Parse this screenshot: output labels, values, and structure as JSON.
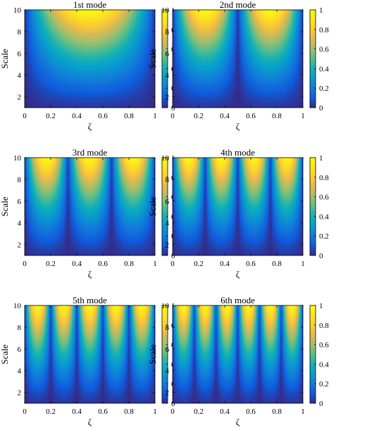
{
  "chart_data": [
    {
      "type": "heatmap",
      "title": "1st mode",
      "mode": 1,
      "xlabel": "ζ",
      "ylabel": "Scale",
      "xlim": [
        0,
        1
      ],
      "ylim": [
        1,
        10
      ],
      "xticks": [
        "0",
        "0.2",
        "0.4",
        "0.6",
        "0.8",
        "1"
      ],
      "yticks": [
        "2",
        "4",
        "6",
        "8",
        "10"
      ],
      "colorbar": {
        "range": [
          0,
          1
        ],
        "ticks": [
          "0",
          "0.2",
          "0.4",
          "0.6",
          "0.8",
          "1"
        ],
        "colormap": "parula"
      }
    },
    {
      "type": "heatmap",
      "title": "2nd mode",
      "mode": 2,
      "xlabel": "ζ",
      "ylabel": "Scale",
      "xlim": [
        0,
        1
      ],
      "ylim": [
        1,
        10
      ],
      "xticks": [
        "0",
        "0.2",
        "0.4",
        "0.6",
        "0.8",
        "1"
      ],
      "yticks": [
        "2",
        "4",
        "6",
        "8",
        "10"
      ],
      "colorbar": {
        "range": [
          0,
          1
        ],
        "ticks": [
          "0",
          "0.2",
          "0.4",
          "0.6",
          "0.8",
          "1"
        ],
        "colormap": "parula"
      }
    },
    {
      "type": "heatmap",
      "title": "3rd mode",
      "mode": 3,
      "xlabel": "ζ",
      "ylabel": "Scale",
      "xlim": [
        0,
        1
      ],
      "ylim": [
        1,
        10
      ],
      "xticks": [
        "0",
        "0.2",
        "0.4",
        "0.6",
        "0.8",
        "1"
      ],
      "yticks": [
        "2",
        "4",
        "6",
        "8",
        "10"
      ],
      "colorbar": {
        "range": [
          0,
          1
        ],
        "ticks": [
          "0",
          "0.2",
          "0.4",
          "0.6",
          "0.8",
          "1"
        ],
        "colormap": "parula"
      }
    },
    {
      "type": "heatmap",
      "title": "4th mode",
      "mode": 4,
      "xlabel": "ζ",
      "ylabel": "Scale",
      "xlim": [
        0,
        1
      ],
      "ylim": [
        1,
        10
      ],
      "xticks": [
        "0",
        "0.2",
        "0.4",
        "0.6",
        "0.8",
        "1"
      ],
      "yticks": [
        "2",
        "4",
        "6",
        "8",
        "10"
      ],
      "colorbar": {
        "range": [
          0,
          1
        ],
        "ticks": [
          "0",
          "0.2",
          "0.4",
          "0.6",
          "0.8",
          "1"
        ],
        "colormap": "parula"
      }
    },
    {
      "type": "heatmap",
      "title": "5th mode",
      "mode": 5,
      "xlabel": "ζ",
      "ylabel": "Scale",
      "xlim": [
        0,
        1
      ],
      "ylim": [
        1,
        10
      ],
      "xticks": [
        "0",
        "0.2",
        "0.4",
        "0.6",
        "0.8",
        "1"
      ],
      "yticks": [
        "2",
        "4",
        "6",
        "8",
        "10"
      ],
      "colorbar": {
        "range": [
          0,
          1
        ],
        "ticks": [
          "0",
          "0.2",
          "0.4",
          "0.6",
          "0.8",
          "1"
        ],
        "colormap": "parula"
      }
    },
    {
      "type": "heatmap",
      "title": "6th mode",
      "mode": 6,
      "xlabel": "ζ",
      "ylabel": "Scale",
      "xlim": [
        0,
        1
      ],
      "ylim": [
        1,
        10
      ],
      "xticks": [
        "0",
        "0.2",
        "0.4",
        "0.6",
        "0.8",
        "1"
      ],
      "yticks": [
        "2",
        "4",
        "6",
        "8",
        "10"
      ],
      "colorbar": {
        "range": [
          0,
          1
        ],
        "ticks": [
          "0",
          "0.2",
          "0.4",
          "0.6",
          "0.8",
          "1"
        ],
        "colormap": "parula"
      }
    }
  ]
}
